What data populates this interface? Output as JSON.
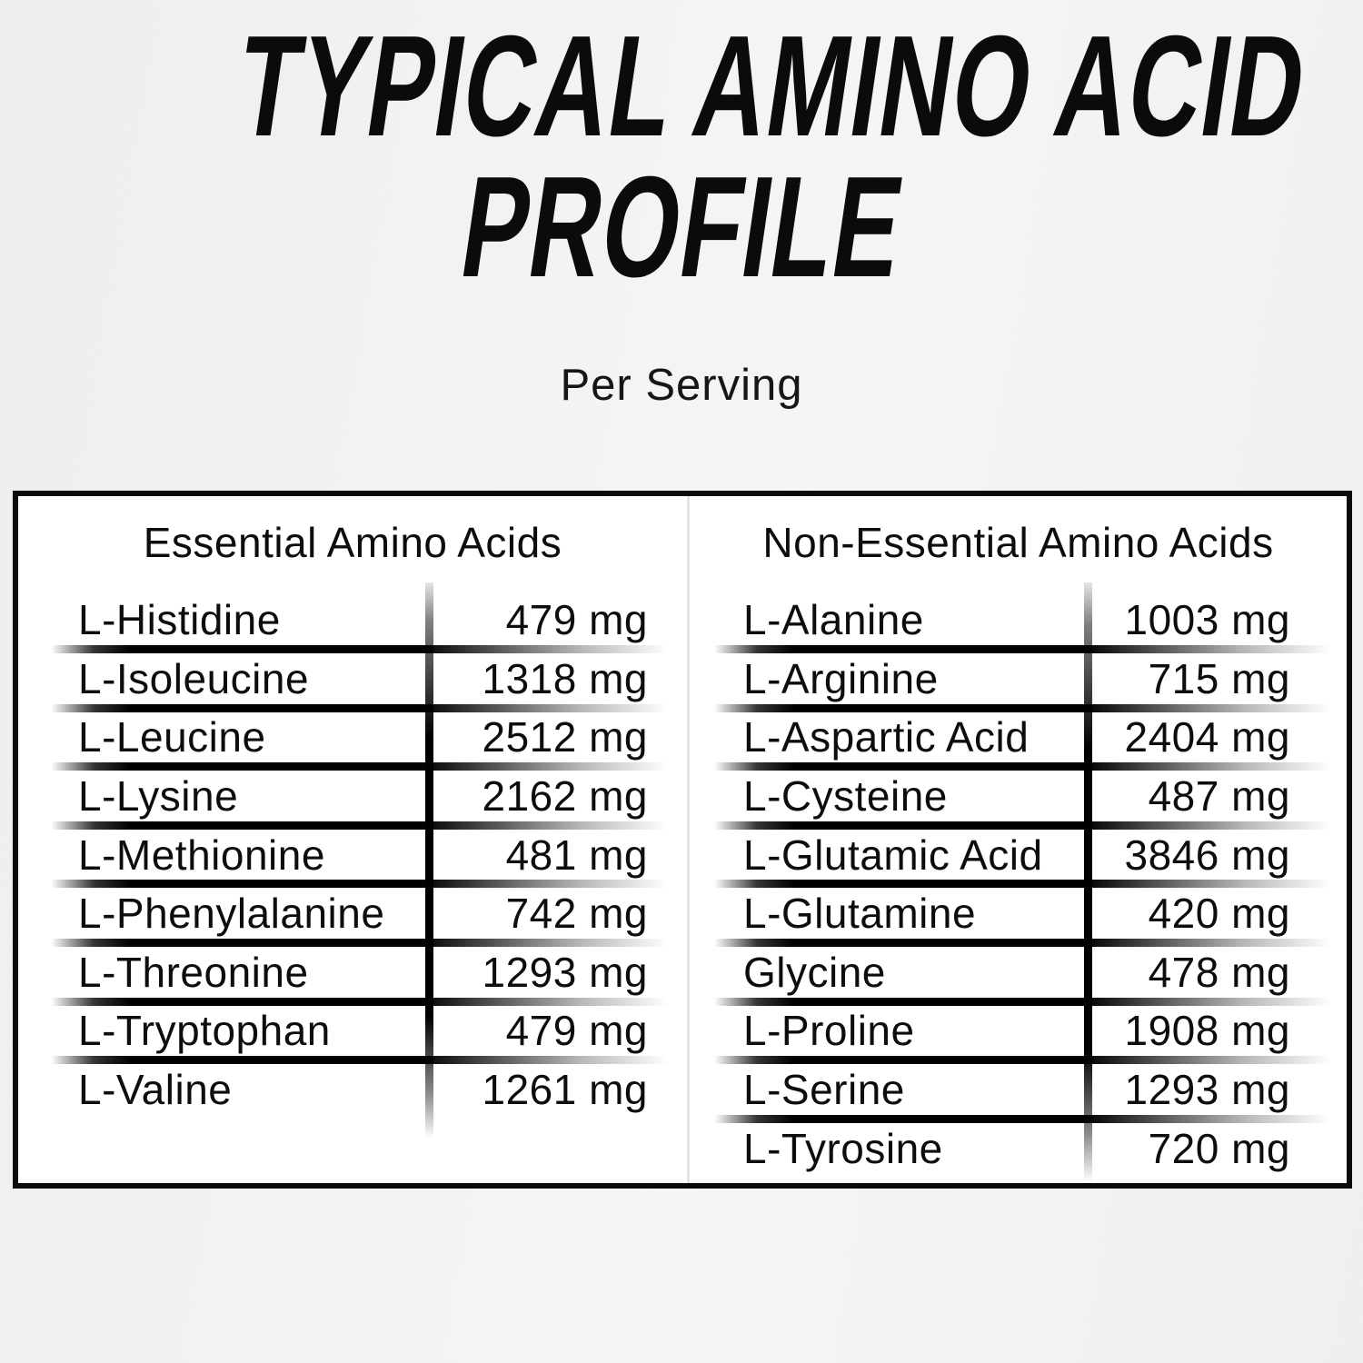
{
  "header": {
    "title_line1": "TYPICAL AMINO ACID",
    "title_line2": "PROFILE",
    "subtitle": "Per Serving"
  },
  "table": {
    "columns": [
      {
        "header": "Essential Amino Acids",
        "rows": [
          {
            "name": "L-Histidine",
            "value": "479 mg"
          },
          {
            "name": "L-Isoleucine",
            "value": "1318 mg"
          },
          {
            "name": "L-Leucine",
            "value": "2512 mg"
          },
          {
            "name": "L-Lysine",
            "value": "2162 mg"
          },
          {
            "name": "L-Methionine",
            "value": "481 mg"
          },
          {
            "name": "L-Phenylalanine",
            "value": "742 mg"
          },
          {
            "name": "L-Threonine",
            "value": "1293 mg"
          },
          {
            "name": "L-Tryptophan",
            "value": "479 mg"
          },
          {
            "name": "L-Valine",
            "value": "1261 mg"
          }
        ]
      },
      {
        "header": "Non-Essential Amino Acids",
        "rows": [
          {
            "name": "L-Alanine",
            "value": "1003 mg"
          },
          {
            "name": "L-Arginine",
            "value": "715 mg"
          },
          {
            "name": "L-Aspartic Acid",
            "value": "2404 mg"
          },
          {
            "name": "L-Cysteine",
            "value": "487 mg"
          },
          {
            "name": "L-Glutamic Acid",
            "value": "3846 mg"
          },
          {
            "name": "L-Glutamine",
            "value": "420 mg"
          },
          {
            "name": "Glycine",
            "value": "478 mg"
          },
          {
            "name": "L-Proline",
            "value": "1908 mg"
          },
          {
            "name": "L-Serine",
            "value": "1293 mg"
          },
          {
            "name": "L-Tyrosine",
            "value": "720 mg"
          }
        ]
      }
    ]
  },
  "colors": {
    "page_bg": "#f2f2f2",
    "panel_bg": "#ffffff",
    "panel_border": "#0a0a0a",
    "text": "#0d0d0d",
    "row_divider": "#000000",
    "middle_separator": "#e4e4e4"
  }
}
